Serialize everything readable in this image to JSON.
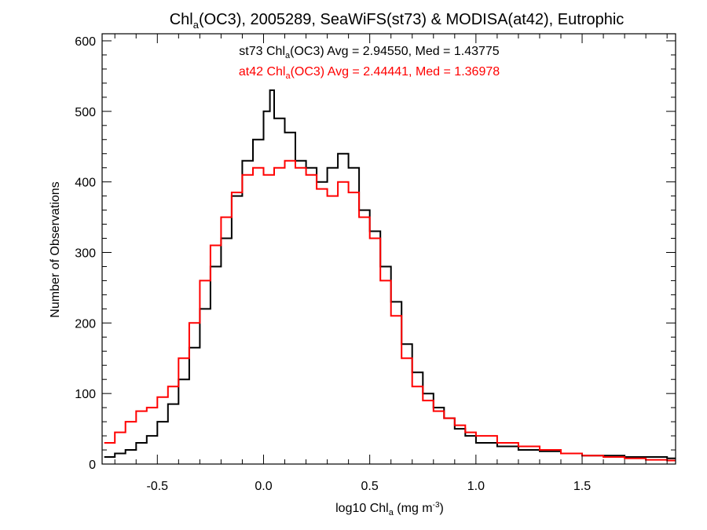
{
  "chart_data": {
    "type": "line",
    "step": true,
    "title": {
      "prefix": "Chl",
      "sub": "a",
      "suffix": "(OC3), 2005289, SeaWiFS(st73) & MODISA(at42), Eutrophic"
    },
    "xlabel": {
      "prefix": "log10 Chl",
      "sub": "a",
      "mid": " (mg m",
      "sup": "-3",
      "suffix": ")"
    },
    "ylabel": "Number of Observations",
    "xlim": [
      -0.76,
      1.94
    ],
    "ylim": [
      0,
      610
    ],
    "x_ticks": [
      -0.5,
      0.0,
      0.5,
      1.0,
      1.5
    ],
    "x_tick_labels": [
      "-0.5",
      "0.0",
      "0.5",
      "1.0",
      "1.5"
    ],
    "y_ticks": [
      0,
      100,
      200,
      300,
      400,
      500,
      600
    ],
    "y_tick_labels": [
      "0",
      "100",
      "200",
      "300",
      "400",
      "500",
      "600"
    ],
    "annotations": [
      {
        "prefix": "st73 Chl",
        "sub": "a",
        "suffix": "(OC3) Avg = 2.94550, Med = 1.43775",
        "color": "#000000"
      },
      {
        "prefix": "at42 Chl",
        "sub": "a",
        "suffix": "(OC3) Avg = 2.44441, Med = 1.36978",
        "color": "#ff0000"
      }
    ],
    "series": [
      {
        "color": "#000000",
        "x": [
          -0.75,
          -0.7,
          -0.65,
          -0.6,
          -0.55,
          -0.5,
          -0.45,
          -0.4,
          -0.35,
          -0.3,
          -0.25,
          -0.2,
          -0.15,
          -0.1,
          -0.05,
          0.0,
          0.03,
          0.05,
          0.1,
          0.15,
          0.2,
          0.25,
          0.3,
          0.35,
          0.4,
          0.45,
          0.5,
          0.55,
          0.6,
          0.65,
          0.7,
          0.75,
          0.8,
          0.85,
          0.9,
          0.95,
          1.0,
          1.1,
          1.2,
          1.3,
          1.4,
          1.5,
          1.6,
          1.7,
          1.8,
          1.9
        ],
        "y": [
          10,
          15,
          20,
          30,
          40,
          60,
          85,
          120,
          165,
          220,
          280,
          320,
          380,
          430,
          460,
          500,
          530,
          490,
          470,
          430,
          420,
          400,
          420,
          440,
          420,
          360,
          330,
          280,
          230,
          170,
          130,
          100,
          80,
          65,
          50,
          40,
          30,
          25,
          20,
          18,
          15,
          12,
          12,
          10,
          10,
          8
        ]
      },
      {
        "color": "#ff0000",
        "x": [
          -0.75,
          -0.7,
          -0.65,
          -0.6,
          -0.55,
          -0.5,
          -0.45,
          -0.4,
          -0.35,
          -0.3,
          -0.25,
          -0.2,
          -0.15,
          -0.1,
          -0.05,
          0.0,
          0.05,
          0.1,
          0.15,
          0.2,
          0.25,
          0.3,
          0.35,
          0.4,
          0.45,
          0.5,
          0.55,
          0.6,
          0.65,
          0.7,
          0.75,
          0.8,
          0.85,
          0.9,
          0.95,
          1.0,
          1.1,
          1.2,
          1.3,
          1.4,
          1.5,
          1.6,
          1.7,
          1.8,
          1.9
        ],
        "y": [
          30,
          45,
          60,
          75,
          80,
          95,
          110,
          150,
          200,
          260,
          310,
          350,
          385,
          410,
          420,
          410,
          420,
          430,
          420,
          410,
          390,
          380,
          400,
          385,
          350,
          320,
          260,
          210,
          150,
          110,
          90,
          75,
          65,
          55,
          45,
          40,
          30,
          25,
          20,
          15,
          12,
          10,
          8,
          6,
          5
        ]
      }
    ]
  }
}
